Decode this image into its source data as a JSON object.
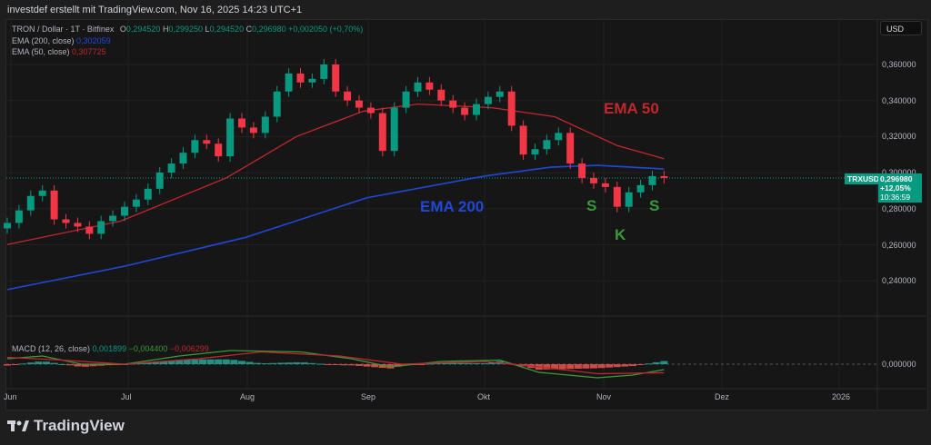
{
  "header": {
    "credit": "investdef erstellt mit TradingView.com, Nov 16, 2025 14:23 UTC+1"
  },
  "legend": {
    "symbol": "TRON / Dollar · 1T · Bitfinex",
    "o_label": "O",
    "o": "0,294520",
    "h_label": "H",
    "h": "0,299250",
    "l_label": "L",
    "l": "0,294520",
    "c_label": "C",
    "c": "0,296980",
    "change": "+0,002050 (+0,70%)",
    "ema200_label": "EMA (200, close)",
    "ema200": "0,302059",
    "ema50_label": "EMA (50, close)",
    "ema50": "0,307725",
    "macd_label": "MACD (12, 26, close)",
    "macd1": "0,001899",
    "macd2": "−0,004400",
    "macd3": "−0,006299"
  },
  "currency_button": "USD",
  "price_axis": [
    "0,360000",
    "0,340000",
    "0,320000",
    "0,300000",
    "0,280000",
    "0,260000",
    "0,240000"
  ],
  "macd_axis": "0,000000",
  "time_axis": [
    "Jun",
    "Jul",
    "Aug",
    "Sep",
    "Okt",
    "Nov",
    "Dez",
    "2026"
  ],
  "last_price": {
    "symbol": "TRXUSD",
    "price": "0,296980",
    "change": "+12,05%",
    "countdown": "10:36:59"
  },
  "annotations": {
    "ema50": "EMA 50",
    "ema200": "EMA 200",
    "s1": "S",
    "k": "K",
    "s2": "S"
  },
  "colors": {
    "up": "#089981",
    "down": "#f23645",
    "ema200": "#2048d8",
    "ema50": "#c1272d",
    "annotation_green": "#3a9a3a",
    "background": "#161616"
  },
  "logo": "TradingView",
  "chart_data": {
    "type": "candlestick",
    "ylim": [
      0.22,
      0.37
    ],
    "closes": [
      [
        "2025-06-01",
        0.272
      ],
      [
        "2025-06-04",
        0.279
      ],
      [
        "2025-06-07",
        0.287
      ],
      [
        "2025-06-10",
        0.29
      ],
      [
        "2025-06-13",
        0.274
      ],
      [
        "2025-06-16",
        0.272
      ],
      [
        "2025-06-19",
        0.27
      ],
      [
        "2025-06-22",
        0.266
      ],
      [
        "2025-06-25",
        0.273
      ],
      [
        "2025-06-28",
        0.276
      ],
      [
        "2025-07-01",
        0.281
      ],
      [
        "2025-07-04",
        0.285
      ],
      [
        "2025-07-07",
        0.291
      ],
      [
        "2025-07-10",
        0.3
      ],
      [
        "2025-07-13",
        0.305
      ],
      [
        "2025-07-16",
        0.311
      ],
      [
        "2025-07-19",
        0.318
      ],
      [
        "2025-07-22",
        0.316
      ],
      [
        "2025-07-25",
        0.309
      ],
      [
        "2025-07-28",
        0.33
      ],
      [
        "2025-07-31",
        0.325
      ],
      [
        "2025-08-03",
        0.322
      ],
      [
        "2025-08-06",
        0.331
      ],
      [
        "2025-08-09",
        0.345
      ],
      [
        "2025-08-12",
        0.355
      ],
      [
        "2025-08-15",
        0.35
      ],
      [
        "2025-08-18",
        0.352
      ],
      [
        "2025-08-21",
        0.36
      ],
      [
        "2025-08-24",
        0.345
      ],
      [
        "2025-08-27",
        0.34
      ],
      [
        "2025-08-30",
        0.336
      ],
      [
        "2025-09-02",
        0.333
      ],
      [
        "2025-09-05",
        0.312
      ],
      [
        "2025-09-08",
        0.336
      ],
      [
        "2025-09-11",
        0.345
      ],
      [
        "2025-09-14",
        0.35
      ],
      [
        "2025-09-17",
        0.346
      ],
      [
        "2025-09-20",
        0.34
      ],
      [
        "2025-09-23",
        0.336
      ],
      [
        "2025-09-26",
        0.332
      ],
      [
        "2025-09-29",
        0.338
      ],
      [
        "2025-10-02",
        0.342
      ],
      [
        "2025-10-05",
        0.345
      ],
      [
        "2025-10-08",
        0.326
      ],
      [
        "2025-10-11",
        0.31
      ],
      [
        "2025-10-14",
        0.313
      ],
      [
        "2025-10-17",
        0.318
      ],
      [
        "2025-10-20",
        0.322
      ],
      [
        "2025-10-23",
        0.305
      ],
      [
        "2025-10-26",
        0.297
      ],
      [
        "2025-10-29",
        0.294
      ],
      [
        "2025-11-01",
        0.292
      ],
      [
        "2025-11-04",
        0.281
      ],
      [
        "2025-11-07",
        0.289
      ],
      [
        "2025-11-10",
        0.293
      ],
      [
        "2025-11-13",
        0.298
      ],
      [
        "2025-11-16",
        0.29698
      ]
    ],
    "ema200": [
      [
        "2025-06-01",
        0.235
      ],
      [
        "2025-07-01",
        0.248
      ],
      [
        "2025-08-01",
        0.264
      ],
      [
        "2025-09-01",
        0.286
      ],
      [
        "2025-10-01",
        0.298
      ],
      [
        "2025-10-18",
        0.303
      ],
      [
        "2025-10-30",
        0.304
      ],
      [
        "2025-11-16",
        0.302
      ]
    ],
    "ema50": [
      [
        "2025-06-01",
        0.26
      ],
      [
        "2025-06-30",
        0.273
      ],
      [
        "2025-07-27",
        0.297
      ],
      [
        "2025-08-14",
        0.32
      ],
      [
        "2025-08-31",
        0.334
      ],
      [
        "2025-09-14",
        0.338
      ],
      [
        "2025-10-03",
        0.336
      ],
      [
        "2025-10-19",
        0.331
      ],
      [
        "2025-11-04",
        0.315
      ],
      [
        "2025-11-16",
        0.3077
      ]
    ],
    "macd": [
      [
        "2025-06-01",
        0.004
      ],
      [
        "2025-06-10",
        0.006
      ],
      [
        "2025-06-20",
        0.0
      ],
      [
        "2025-07-01",
        0.0
      ],
      [
        "2025-07-15",
        0.006
      ],
      [
        "2025-07-28",
        0.01
      ],
      [
        "2025-08-15",
        0.009
      ],
      [
        "2025-08-28",
        0.004
      ],
      [
        "2025-09-07",
        -0.002
      ],
      [
        "2025-09-20",
        0.002
      ],
      [
        "2025-10-05",
        0.003
      ],
      [
        "2025-10-15",
        -0.006
      ],
      [
        "2025-10-30",
        -0.01
      ],
      [
        "2025-11-08",
        -0.008
      ],
      [
        "2025-11-16",
        -0.004
      ]
    ],
    "signal": [
      [
        "2025-06-01",
        0.005
      ],
      [
        "2025-06-15",
        0.003
      ],
      [
        "2025-07-01",
        0.0
      ],
      [
        "2025-07-20",
        0.004
      ],
      [
        "2025-08-05",
        0.009
      ],
      [
        "2025-08-25",
        0.006
      ],
      [
        "2025-09-10",
        0.0
      ],
      [
        "2025-10-01",
        0.002
      ],
      [
        "2025-10-15",
        -0.002
      ],
      [
        "2025-10-30",
        -0.007
      ],
      [
        "2025-11-16",
        -0.0063
      ]
    ]
  }
}
